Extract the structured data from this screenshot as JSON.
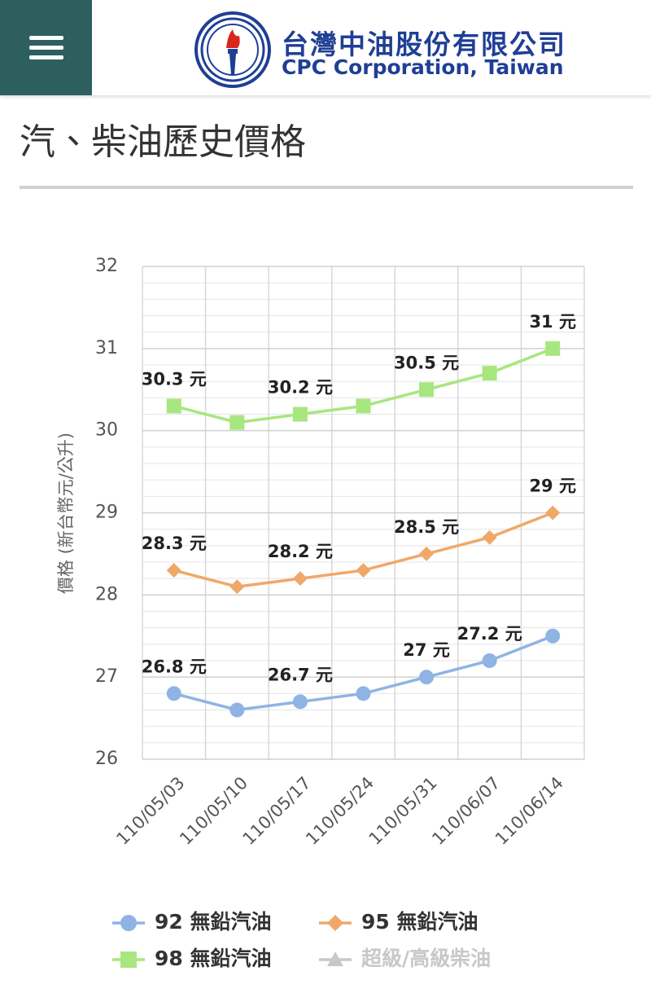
{
  "header": {
    "brand_zh": "台灣中油股份有限公司",
    "brand_en": "CPC Corporation, Taiwan"
  },
  "page_title": "汽、柴油歷史價格",
  "chart_data": {
    "type": "line",
    "ylabel": "價格 (新台幣元/公升)",
    "categories": [
      "110/05/03",
      "110/05/10",
      "110/05/17",
      "110/05/24",
      "110/05/31",
      "110/06/07",
      "110/06/14"
    ],
    "ylim": [
      26,
      32
    ],
    "yticks": [
      26,
      27,
      28,
      29,
      30,
      31,
      32
    ],
    "minor_yticks": [
      26.2,
      26.4,
      26.6,
      26.8,
      27.2,
      27.4,
      27.6,
      27.8,
      28.2,
      28.4,
      28.6,
      28.8,
      29.2,
      29.4,
      29.6,
      29.8,
      30.2,
      30.4,
      30.6,
      30.8,
      31.2,
      31.4,
      31.6,
      31.8
    ],
    "grid": true,
    "legend": "bottom",
    "series": [
      {
        "name": "92 無鉛汽油",
        "color": "#8fb4e3",
        "marker": "circle",
        "values": [
          26.8,
          26.6,
          26.7,
          26.8,
          27.0,
          27.2,
          27.5
        ],
        "value_labels": [
          "26.8 元",
          null,
          "26.7 元",
          null,
          "27 元",
          "27.2 元",
          null
        ]
      },
      {
        "name": "95 無鉛汽油",
        "color": "#f0a868",
        "marker": "diamond",
        "values": [
          28.3,
          28.1,
          28.2,
          28.3,
          28.5,
          28.7,
          29.0
        ],
        "value_labels": [
          "28.3 元",
          null,
          "28.2 元",
          null,
          "28.5 元",
          null,
          "29 元"
        ]
      },
      {
        "name": "98 無鉛汽油",
        "color": "#a8e67f",
        "marker": "square",
        "values": [
          30.3,
          30.1,
          30.2,
          30.3,
          30.5,
          30.7,
          31.0
        ],
        "value_labels": [
          "30.3 元",
          null,
          "30.2 元",
          null,
          "30.5 元",
          null,
          "31 元"
        ]
      },
      {
        "name": "超級/高級柴油",
        "color": "#c8c8c8",
        "marker": "triangle",
        "hidden": true,
        "values": [
          null,
          null,
          null,
          null,
          null,
          null,
          null
        ]
      }
    ]
  }
}
